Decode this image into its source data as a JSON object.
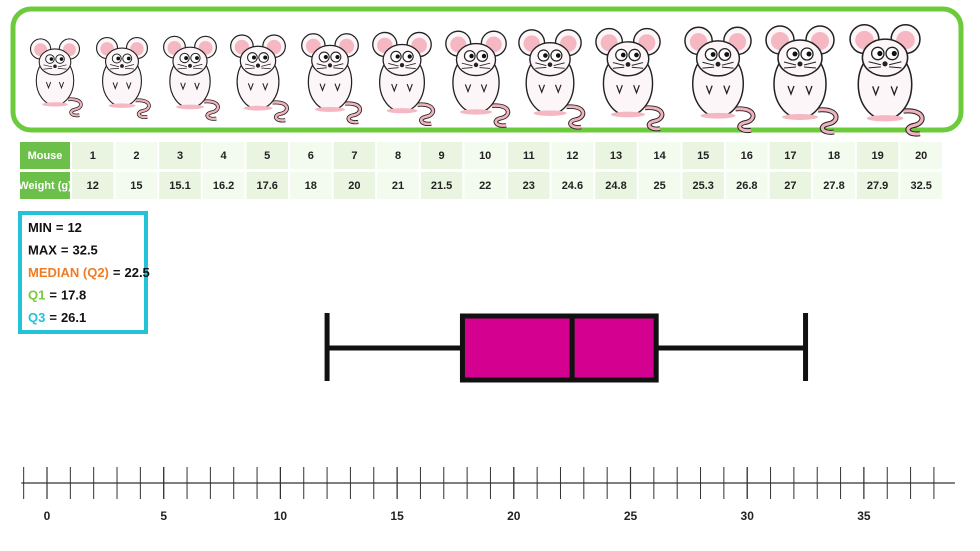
{
  "table": {
    "rows": [
      [
        "Mouse",
        "1",
        "2",
        "3",
        "4",
        "5",
        "6",
        "7",
        "8",
        "9",
        "10",
        "11",
        "12",
        "13",
        "14",
        "15",
        "16",
        "17",
        "18",
        "19",
        "20"
      ],
      [
        "Weight (g)",
        "12",
        "15",
        "15.1",
        "16.2",
        "17.6",
        "18",
        "20",
        "21",
        "21.5",
        "22",
        "23",
        "24.6",
        "24.8",
        "25",
        "25.3",
        "26.8",
        "27",
        "27.8",
        "27.9",
        "32.5"
      ]
    ]
  },
  "chart_data": {
    "type": "box",
    "stats": {
      "min": 12,
      "max": 32.5,
      "median": 22.5,
      "q1": 17.8,
      "q3": 26.1
    },
    "stat_labels": {
      "min": "MIN",
      "max": "MAX",
      "median": "MEDIAN (Q2)",
      "q1": "Q1",
      "q3": "Q3"
    },
    "stat_colors": {
      "min": "#111111",
      "max": "#111111",
      "median": "#f07c24",
      "q1": "#7acb3c",
      "q3": "#22c3d6"
    },
    "separator": "=",
    "color": "#d4008f",
    "xlim": [
      -1.1,
      38.9
    ],
    "xticks": [
      0,
      5,
      10,
      15,
      20,
      25,
      30,
      35
    ],
    "minor_tick_step": 1
  }
}
